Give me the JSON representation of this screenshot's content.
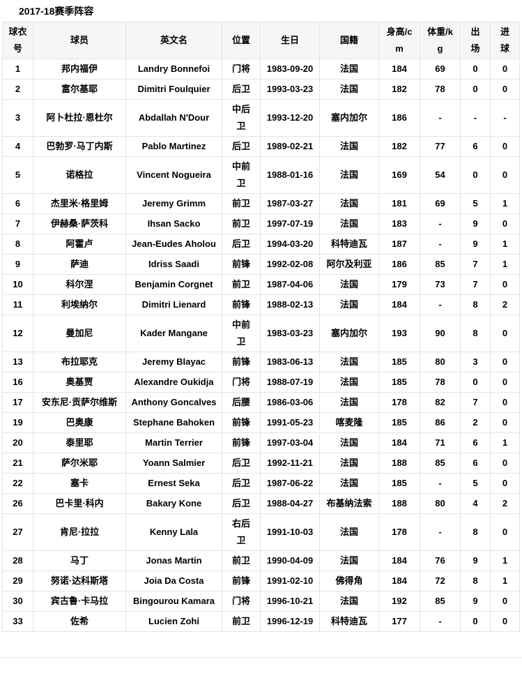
{
  "page": {
    "title": "2017-18赛季阵容"
  },
  "colors": {
    "border": "#e3e3e3",
    "header_bg": "#f6f6f6",
    "text": "#000000"
  },
  "table": {
    "columns": [
      {
        "key": "number",
        "label": "球衣号"
      },
      {
        "key": "player",
        "label": "球员"
      },
      {
        "key": "name_en",
        "label": "英文名"
      },
      {
        "key": "position",
        "label": "位置"
      },
      {
        "key": "birthday",
        "label": "生日"
      },
      {
        "key": "nationality",
        "label": "国籍"
      },
      {
        "key": "height",
        "label": "身高/cm"
      },
      {
        "key": "weight",
        "label": "体重/kg"
      },
      {
        "key": "appearances",
        "label": "出场"
      },
      {
        "key": "goals",
        "label": "进球"
      }
    ],
    "rows": [
      [
        "1",
        "邦内福伊",
        "Landry Bonnefoi",
        "门将",
        "1983-09-20",
        "法国",
        "184",
        "69",
        "0",
        "0"
      ],
      [
        "2",
        "富尔基耶",
        "Dimitri Foulquier",
        "后卫",
        "1993-03-23",
        "法国",
        "182",
        "78",
        "0",
        "0"
      ],
      [
        "3",
        "阿卜杜拉·恩杜尔",
        "Abdallah N'Dour",
        "中后卫",
        "1993-12-20",
        "塞内加尔",
        "186",
        "-",
        "-",
        "-"
      ],
      [
        "4",
        "巴勃罗·马丁内斯",
        "Pablo Martinez",
        "后卫",
        "1989-02-21",
        "法国",
        "182",
        "77",
        "6",
        "0"
      ],
      [
        "5",
        "诺格拉",
        "Vincent Nogueira",
        "中前卫",
        "1988-01-16",
        "法国",
        "169",
        "54",
        "0",
        "0"
      ],
      [
        "6",
        "杰里米·格里姆",
        "Jeremy Grimm",
        "前卫",
        "1987-03-27",
        "法国",
        "181",
        "69",
        "5",
        "1"
      ],
      [
        "7",
        "伊赫桑·萨茨科",
        "Ihsan Sacko",
        "前卫",
        "1997-07-19",
        "法国",
        "183",
        "-",
        "9",
        "0"
      ],
      [
        "8",
        "阿霍卢",
        "Jean-Eudes Aholou",
        "后卫",
        "1994-03-20",
        "科特迪瓦",
        "187",
        "-",
        "9",
        "1"
      ],
      [
        "9",
        "萨迪",
        "Idriss Saadi",
        "前锋",
        "1992-02-08",
        "阿尔及利亚",
        "186",
        "85",
        "7",
        "1"
      ],
      [
        "10",
        "科尔涅",
        "Benjamin Corgnet",
        "前卫",
        "1987-04-06",
        "法国",
        "179",
        "73",
        "7",
        "0"
      ],
      [
        "11",
        "利埃纳尔",
        "Dimitri Lienard",
        "前锋",
        "1988-02-13",
        "法国",
        "184",
        "-",
        "8",
        "2"
      ],
      [
        "12",
        "曼加尼",
        "Kader Mangane",
        "中前卫",
        "1983-03-23",
        "塞内加尔",
        "193",
        "90",
        "8",
        "0"
      ],
      [
        "13",
        "布拉耶克",
        "Jeremy Blayac",
        "前锋",
        "1983-06-13",
        "法国",
        "185",
        "80",
        "3",
        "0"
      ],
      [
        "16",
        "奥基贾",
        "Alexandre Oukidja",
        "门将",
        "1988-07-19",
        "法国",
        "185",
        "78",
        "0",
        "0"
      ],
      [
        "17",
        "安东尼·贡萨尔维斯",
        "Anthony Goncalves",
        "后腰",
        "1986-03-06",
        "法国",
        "178",
        "82",
        "7",
        "0"
      ],
      [
        "19",
        "巴奥康",
        "Stephane Bahoken",
        "前锋",
        "1991-05-23",
        "喀麦隆",
        "185",
        "86",
        "2",
        "0"
      ],
      [
        "20",
        "泰里耶",
        "Martin Terrier",
        "前锋",
        "1997-03-04",
        "法国",
        "184",
        "71",
        "6",
        "1"
      ],
      [
        "21",
        "萨尔米耶",
        "Yoann Salmier",
        "后卫",
        "1992-11-21",
        "法国",
        "188",
        "85",
        "6",
        "0"
      ],
      [
        "22",
        "塞卡",
        "Ernest Seka",
        "后卫",
        "1987-06-22",
        "法国",
        "185",
        "-",
        "5",
        "0"
      ],
      [
        "26",
        "巴卡里·科内",
        "Bakary Kone",
        "后卫",
        "1988-04-27",
        "布基纳法索",
        "188",
        "80",
        "4",
        "2"
      ],
      [
        "27",
        "肯尼·拉拉",
        "Kenny Lala",
        "右后卫",
        "1991-10-03",
        "法国",
        "178",
        "-",
        "8",
        "0"
      ],
      [
        "28",
        "马丁",
        "Jonas Martin",
        "前卫",
        "1990-04-09",
        "法国",
        "184",
        "76",
        "9",
        "1"
      ],
      [
        "29",
        "努诺·达科斯塔",
        "Joia Da Costa",
        "前锋",
        "1991-02-10",
        "佛得角",
        "184",
        "72",
        "8",
        "1"
      ],
      [
        "30",
        "宾古鲁·卡马拉",
        "Bingourou Kamara",
        "门将",
        "1996-10-21",
        "法国",
        "192",
        "85",
        "9",
        "0"
      ],
      [
        "33",
        "佐希",
        "Lucien Zohi",
        "前卫",
        "1996-12-19",
        "科特迪瓦",
        "177",
        "-",
        "0",
        "0"
      ]
    ]
  }
}
